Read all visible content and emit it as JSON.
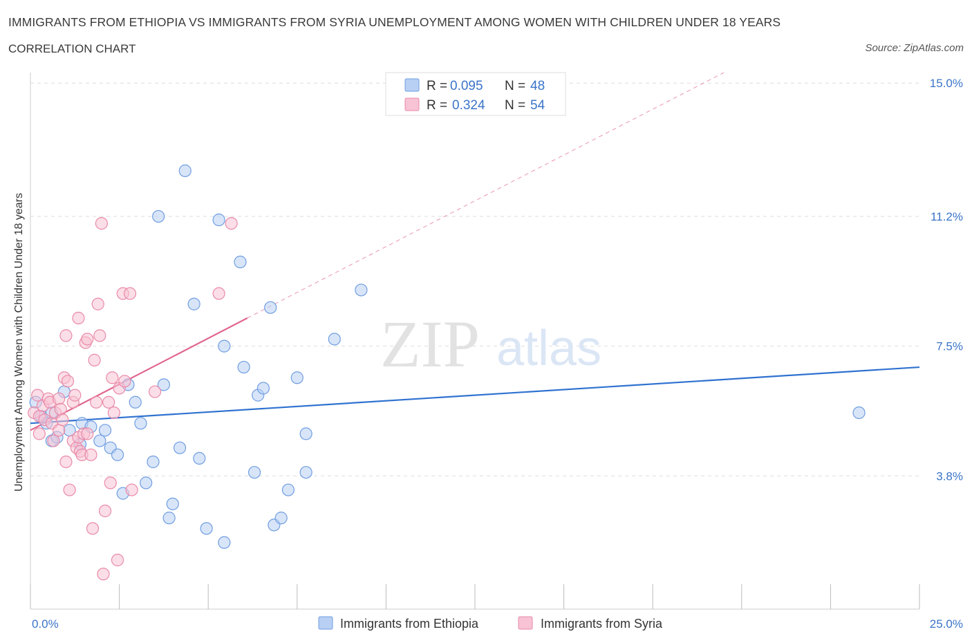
{
  "header": {
    "title": "IMMIGRANTS FROM ETHIOPIA VS IMMIGRANTS FROM SYRIA UNEMPLOYMENT AMONG WOMEN WITH CHILDREN UNDER 18 YEARS",
    "subtitle": "CORRELATION CHART",
    "source": "Source: ZipAtlas.com"
  },
  "watermark": {
    "zip": "ZIP",
    "atlas": "atlas"
  },
  "colors": {
    "ethiopia_fill": "#b8d0f4",
    "ethiopia_stroke": "#6f9de0",
    "ethiopia_line": "#2f72d0",
    "syria_fill": "#f8c3d4",
    "syria_stroke": "#e98aa8",
    "syria_line": "#e0668e",
    "axis_label": "#3a74c8",
    "grid": "#dddddd"
  },
  "legend_top": {
    "rows": [
      {
        "r_label": "R =",
        "r_value": "0.095",
        "n_label": "N =",
        "n_value": "48"
      },
      {
        "r_label": "R =",
        "r_value": "0.324",
        "n_label": "N =",
        "n_value": "54"
      }
    ]
  },
  "legend_bottom": [
    "Immigrants from Ethiopia",
    "Immigrants from Syria"
  ],
  "chart_data": {
    "type": "scatter",
    "title": "IMMIGRANTS FROM ETHIOPIA VS IMMIGRANTS FROM SYRIA UNEMPLOYMENT AMONG WOMEN WITH CHILDREN UNDER 18 YEARS",
    "xlabel": "",
    "ylabel": "Unemployment Among Women with Children Under 18 years",
    "xlim": [
      0,
      25
    ],
    "ylim": [
      0,
      15.3
    ],
    "x_tick_labels": [
      {
        "value": 0,
        "label": "0.0%"
      },
      {
        "value": 25,
        "label": "25.0%"
      }
    ],
    "y_tick_labels": [
      {
        "value": 3.8,
        "label": "3.8%"
      },
      {
        "value": 7.5,
        "label": "7.5%"
      },
      {
        "value": 11.2,
        "label": "11.2%"
      },
      {
        "value": 15.0,
        "label": "15.0%"
      }
    ],
    "grid": true,
    "legend_position": "top-center",
    "series": [
      {
        "name": "Immigrants from Ethiopia",
        "r": 0.095,
        "n": 48,
        "trend": {
          "x": [
            0,
            25
          ],
          "y": [
            5.3,
            6.9
          ],
          "dashed_extension": false
        },
        "points": [
          [
            0.15,
            5.9
          ],
          [
            0.3,
            5.5
          ],
          [
            0.45,
            5.3
          ],
          [
            0.6,
            5.6
          ],
          [
            0.6,
            4.8
          ],
          [
            0.75,
            4.9
          ],
          [
            0.95,
            6.2
          ],
          [
            1.1,
            5.1
          ],
          [
            1.4,
            4.7
          ],
          [
            1.45,
            5.3
          ],
          [
            1.7,
            5.2
          ],
          [
            1.95,
            4.8
          ],
          [
            2.1,
            5.1
          ],
          [
            2.25,
            4.6
          ],
          [
            2.45,
            4.4
          ],
          [
            2.6,
            3.3
          ],
          [
            2.75,
            6.4
          ],
          [
            2.95,
            5.9
          ],
          [
            3.1,
            5.3
          ],
          [
            3.25,
            3.6
          ],
          [
            3.45,
            4.2
          ],
          [
            3.6,
            11.2
          ],
          [
            3.75,
            6.4
          ],
          [
            3.9,
            2.6
          ],
          [
            4.0,
            3.0
          ],
          [
            4.2,
            4.6
          ],
          [
            4.35,
            12.5
          ],
          [
            4.6,
            8.7
          ],
          [
            4.75,
            4.3
          ],
          [
            4.95,
            2.3
          ],
          [
            5.3,
            11.1
          ],
          [
            5.45,
            7.5
          ],
          [
            5.45,
            1.9
          ],
          [
            5.9,
            9.9
          ],
          [
            6.0,
            6.9
          ],
          [
            6.3,
            3.9
          ],
          [
            6.4,
            6.1
          ],
          [
            6.55,
            6.3
          ],
          [
            6.75,
            8.6
          ],
          [
            6.85,
            2.4
          ],
          [
            7.05,
            2.6
          ],
          [
            7.25,
            3.4
          ],
          [
            7.5,
            6.6
          ],
          [
            7.75,
            5.0
          ],
          [
            7.75,
            3.9
          ],
          [
            8.55,
            7.7
          ],
          [
            9.3,
            9.1
          ],
          [
            23.3,
            5.6
          ]
        ]
      },
      {
        "name": "Immigrants from Syria",
        "r": 0.324,
        "n": 54,
        "trend": {
          "x": [
            0,
            6.1
          ],
          "y": [
            5.1,
            8.3
          ],
          "extension_to": [
            19.5,
            15.3
          ],
          "dashed_extension": true
        },
        "points": [
          [
            0.1,
            5.6
          ],
          [
            0.2,
            6.1
          ],
          [
            0.25,
            5.5
          ],
          [
            0.25,
            5.0
          ],
          [
            0.35,
            5.8
          ],
          [
            0.4,
            5.4
          ],
          [
            0.5,
            6.0
          ],
          [
            0.55,
            5.9
          ],
          [
            0.6,
            5.3
          ],
          [
            0.65,
            4.8
          ],
          [
            0.7,
            5.6
          ],
          [
            0.8,
            6.0
          ],
          [
            0.8,
            5.1
          ],
          [
            0.85,
            5.7
          ],
          [
            0.9,
            5.4
          ],
          [
            0.95,
            6.6
          ],
          [
            1.0,
            7.8
          ],
          [
            1.0,
            4.2
          ],
          [
            1.05,
            6.5
          ],
          [
            1.1,
            3.4
          ],
          [
            1.2,
            5.9
          ],
          [
            1.2,
            4.8
          ],
          [
            1.25,
            6.1
          ],
          [
            1.3,
            4.6
          ],
          [
            1.35,
            8.3
          ],
          [
            1.35,
            4.9
          ],
          [
            1.4,
            4.5
          ],
          [
            1.45,
            4.4
          ],
          [
            1.5,
            5.0
          ],
          [
            1.55,
            7.6
          ],
          [
            1.6,
            5.0
          ],
          [
            1.6,
            7.7
          ],
          [
            1.7,
            4.4
          ],
          [
            1.75,
            2.3
          ],
          [
            1.8,
            7.1
          ],
          [
            1.85,
            5.9
          ],
          [
            1.9,
            8.7
          ],
          [
            1.95,
            7.8
          ],
          [
            2.0,
            11.0
          ],
          [
            2.05,
            1.0
          ],
          [
            2.1,
            2.8
          ],
          [
            2.2,
            5.9
          ],
          [
            2.25,
            3.6
          ],
          [
            2.3,
            6.6
          ],
          [
            2.35,
            5.6
          ],
          [
            2.45,
            1.4
          ],
          [
            2.5,
            6.3
          ],
          [
            2.6,
            9.0
          ],
          [
            2.65,
            6.5
          ],
          [
            2.8,
            9.0
          ],
          [
            2.85,
            3.4
          ],
          [
            3.5,
            6.2
          ],
          [
            5.3,
            9.0
          ],
          [
            5.65,
            11.0
          ]
        ]
      }
    ]
  }
}
